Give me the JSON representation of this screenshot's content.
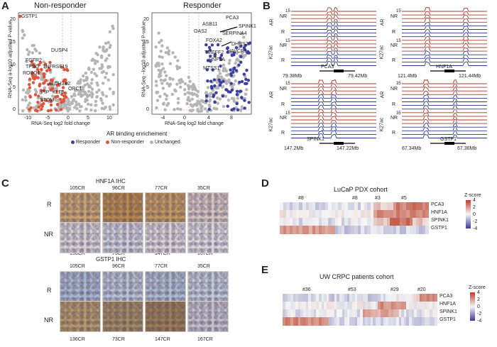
{
  "panels": {
    "A": "A",
    "B": "B",
    "C": "C",
    "D": "D",
    "E": "E"
  },
  "volcano": {
    "left_title": "Non-responder",
    "right_title": "Responder",
    "ylabel_left": "RNA-Seq a-log10 adjusted P-value",
    "ylabel_right": "RNA-Seq −log10 adjusted P-value",
    "xlabel": "RNA-Seq log2 fold change",
    "left_xticks": [
      "-10",
      "-5",
      "0",
      "5",
      "10"
    ],
    "right_xticks": [
      "-4",
      "0",
      "4",
      "8"
    ],
    "left_yticks": [
      "0",
      "5",
      "10",
      "15",
      "20"
    ],
    "right_yticks": [
      "0",
      "5",
      "10",
      "15",
      "20"
    ],
    "left_genes": [
      "GSTP1",
      "DUSP4",
      "FGFR2",
      "TPBG",
      "TNFRSF19",
      "ROBO1",
      "ALDH3B2",
      "PIP",
      "KLF5",
      "ORC1",
      "STOM"
    ],
    "right_genes": [
      "PCA3",
      "ASB11",
      "SPINK1",
      "OAS2",
      "SERPINA4",
      "FOXA2",
      "DHRS2",
      "TMEFF2",
      "HAVCR1",
      "HNF1A",
      "MTSS1"
    ],
    "legend_title": "AR binding enrichement",
    "legend": [
      "Responder",
      "Non-responder",
      "Unchanged"
    ],
    "colors": {
      "responder": "#3b3fa0",
      "nonresponder": "#e0533a",
      "unchanged": "#b5b5b5"
    }
  },
  "tracks": {
    "yscale": [
      "0",
      "15",
      "0",
      "15",
      "0",
      "15",
      "0",
      "35"
    ],
    "group_labels": [
      "NR",
      "R",
      "NR",
      "R"
    ],
    "mark_labels": [
      "AR",
      "K27ac"
    ],
    "genes": [
      "PCA3",
      "HNF1A",
      "SPINK1",
      "GSTP1"
    ],
    "coords": [
      [
        "79.38Mb",
        "79.42Mb"
      ],
      [
        "121.4Mb",
        "121.44Mb"
      ],
      [
        "147.2Mb",
        "147.22Mb"
      ],
      [
        "67.34Mb",
        "67.36Mb"
      ]
    ],
    "colors": {
      "nr": "#a33a2e",
      "r": "#2b3a8f"
    }
  },
  "ihc": {
    "hnf1a_title": "HNF1A IHC",
    "gstp1_title": "GSTP1 IHC",
    "top_labels": [
      "105CR",
      "96CR",
      "77CR",
      "35CR"
    ],
    "bottom_labels": [
      "136CR",
      "73CR",
      "147CR",
      "167CR"
    ],
    "row_labels": [
      "R",
      "NR"
    ]
  },
  "heatmap_d": {
    "title": "LuCaP PDX cohort",
    "groups": [
      "#8",
      "#8",
      "#3",
      "#5"
    ],
    "rows": [
      "PCA3",
      "HNF1A",
      "SPINK1",
      "GSTP1"
    ],
    "legend_title": "Z-score",
    "legend_ticks": [
      "4",
      "2",
      "0",
      "-2",
      "-4"
    ]
  },
  "heatmap_e": {
    "title": "UW CRPC patients cohort",
    "groups": [
      "#36",
      "#53",
      "#29",
      "#20"
    ],
    "rows": [
      "PCA3",
      "HNF1A",
      "SPINK1",
      "GSTP1"
    ],
    "legend_title": "Z-score",
    "legend_ticks": [
      "4",
      "2",
      "0",
      "-2",
      "-4"
    ]
  }
}
